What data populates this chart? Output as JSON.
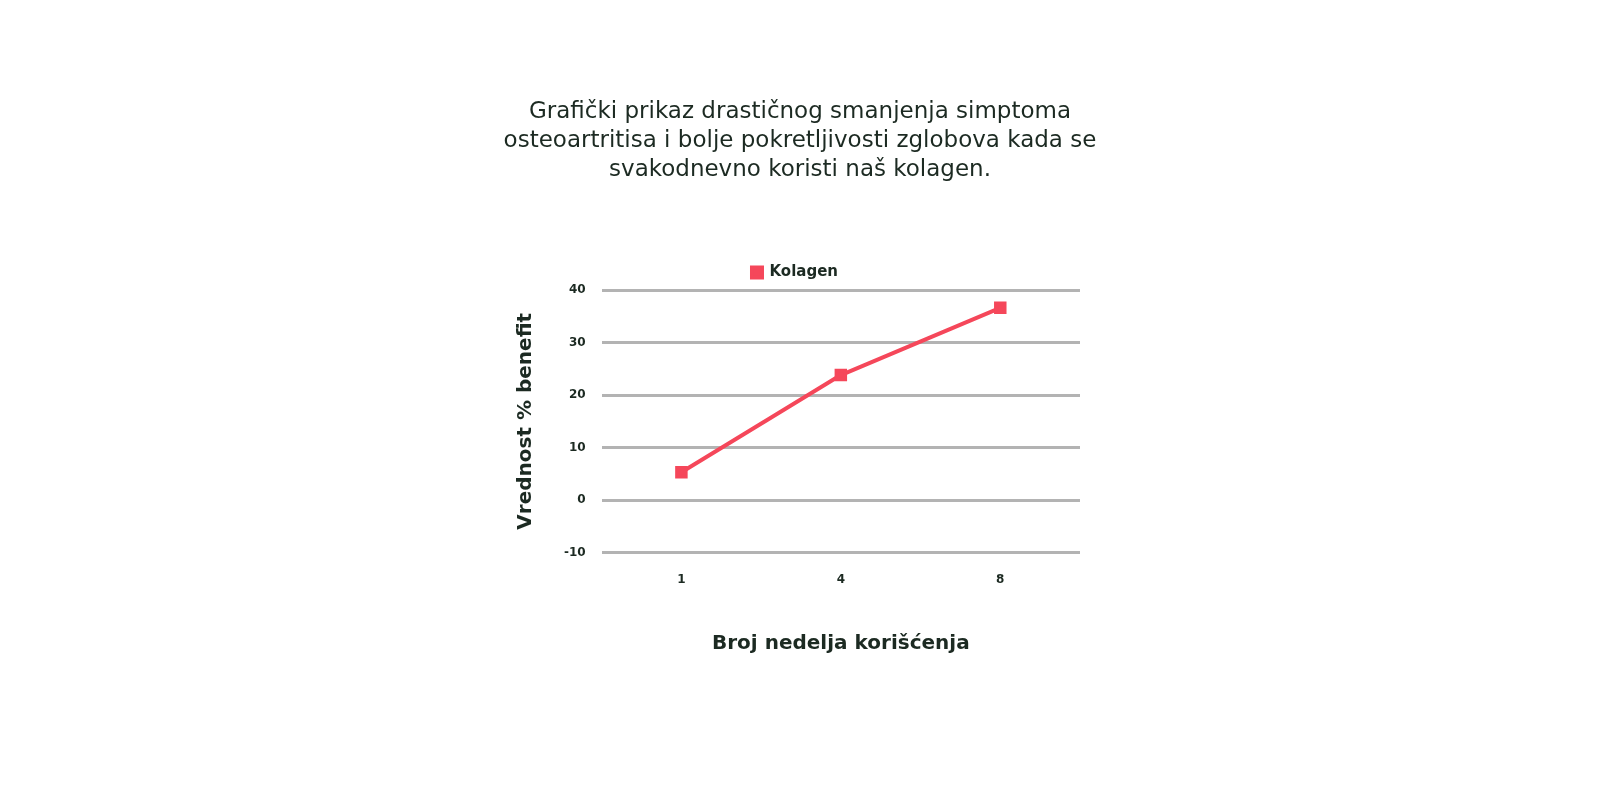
{
  "chart_data": {
    "type": "line",
    "title": "Grafički prikaz drastičnog smanjenja simptoma osteoartritisa i bolje pokretljivosti zglobova kada se svakodnevno koristi naš kolagen.",
    "xlabel": "Broj nedelja korišćenja",
    "ylabel": "Vrednost % benefit",
    "categories": [
      "1",
      "4",
      "8"
    ],
    "series": [
      {
        "name": "Kolagen",
        "color": "#f5475a",
        "values": [
          5.3,
          23.8,
          36.6
        ]
      }
    ],
    "ylim": [
      -10,
      40
    ],
    "yticks": [
      -10,
      0,
      10,
      20,
      30,
      40
    ],
    "grid": "y",
    "legend": "top",
    "marker": "square",
    "line_style": "solid"
  }
}
